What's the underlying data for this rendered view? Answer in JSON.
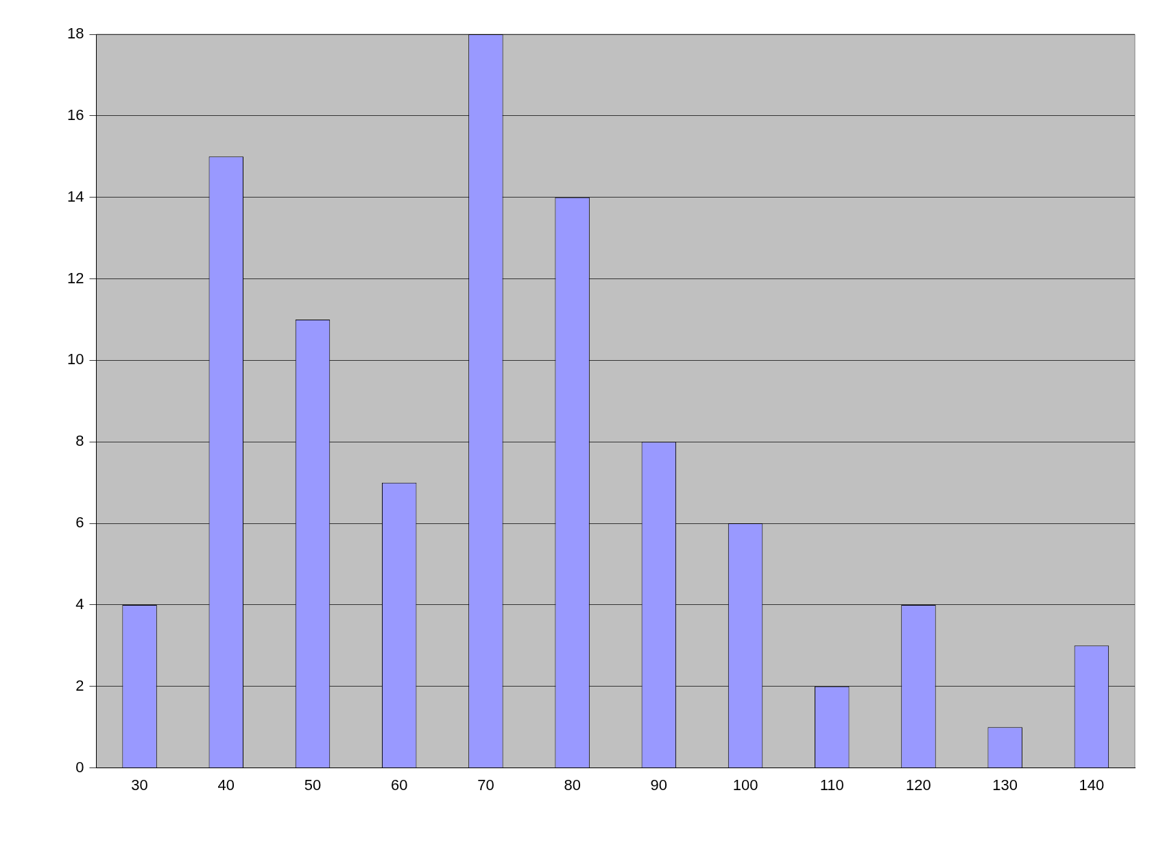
{
  "chart_data": {
    "type": "bar",
    "categories": [
      "30",
      "40",
      "50",
      "60",
      "70",
      "80",
      "90",
      "100",
      "110",
      "120",
      "130",
      "140"
    ],
    "values": [
      4,
      15,
      11,
      7,
      18,
      14,
      8,
      6,
      2,
      4,
      1,
      3
    ],
    "color": "#9999ff",
    "ylim": [
      0,
      18
    ],
    "yticks": [
      0,
      2,
      4,
      6,
      8,
      10,
      12,
      14,
      16,
      18
    ],
    "grid": "y",
    "legend": false
  }
}
